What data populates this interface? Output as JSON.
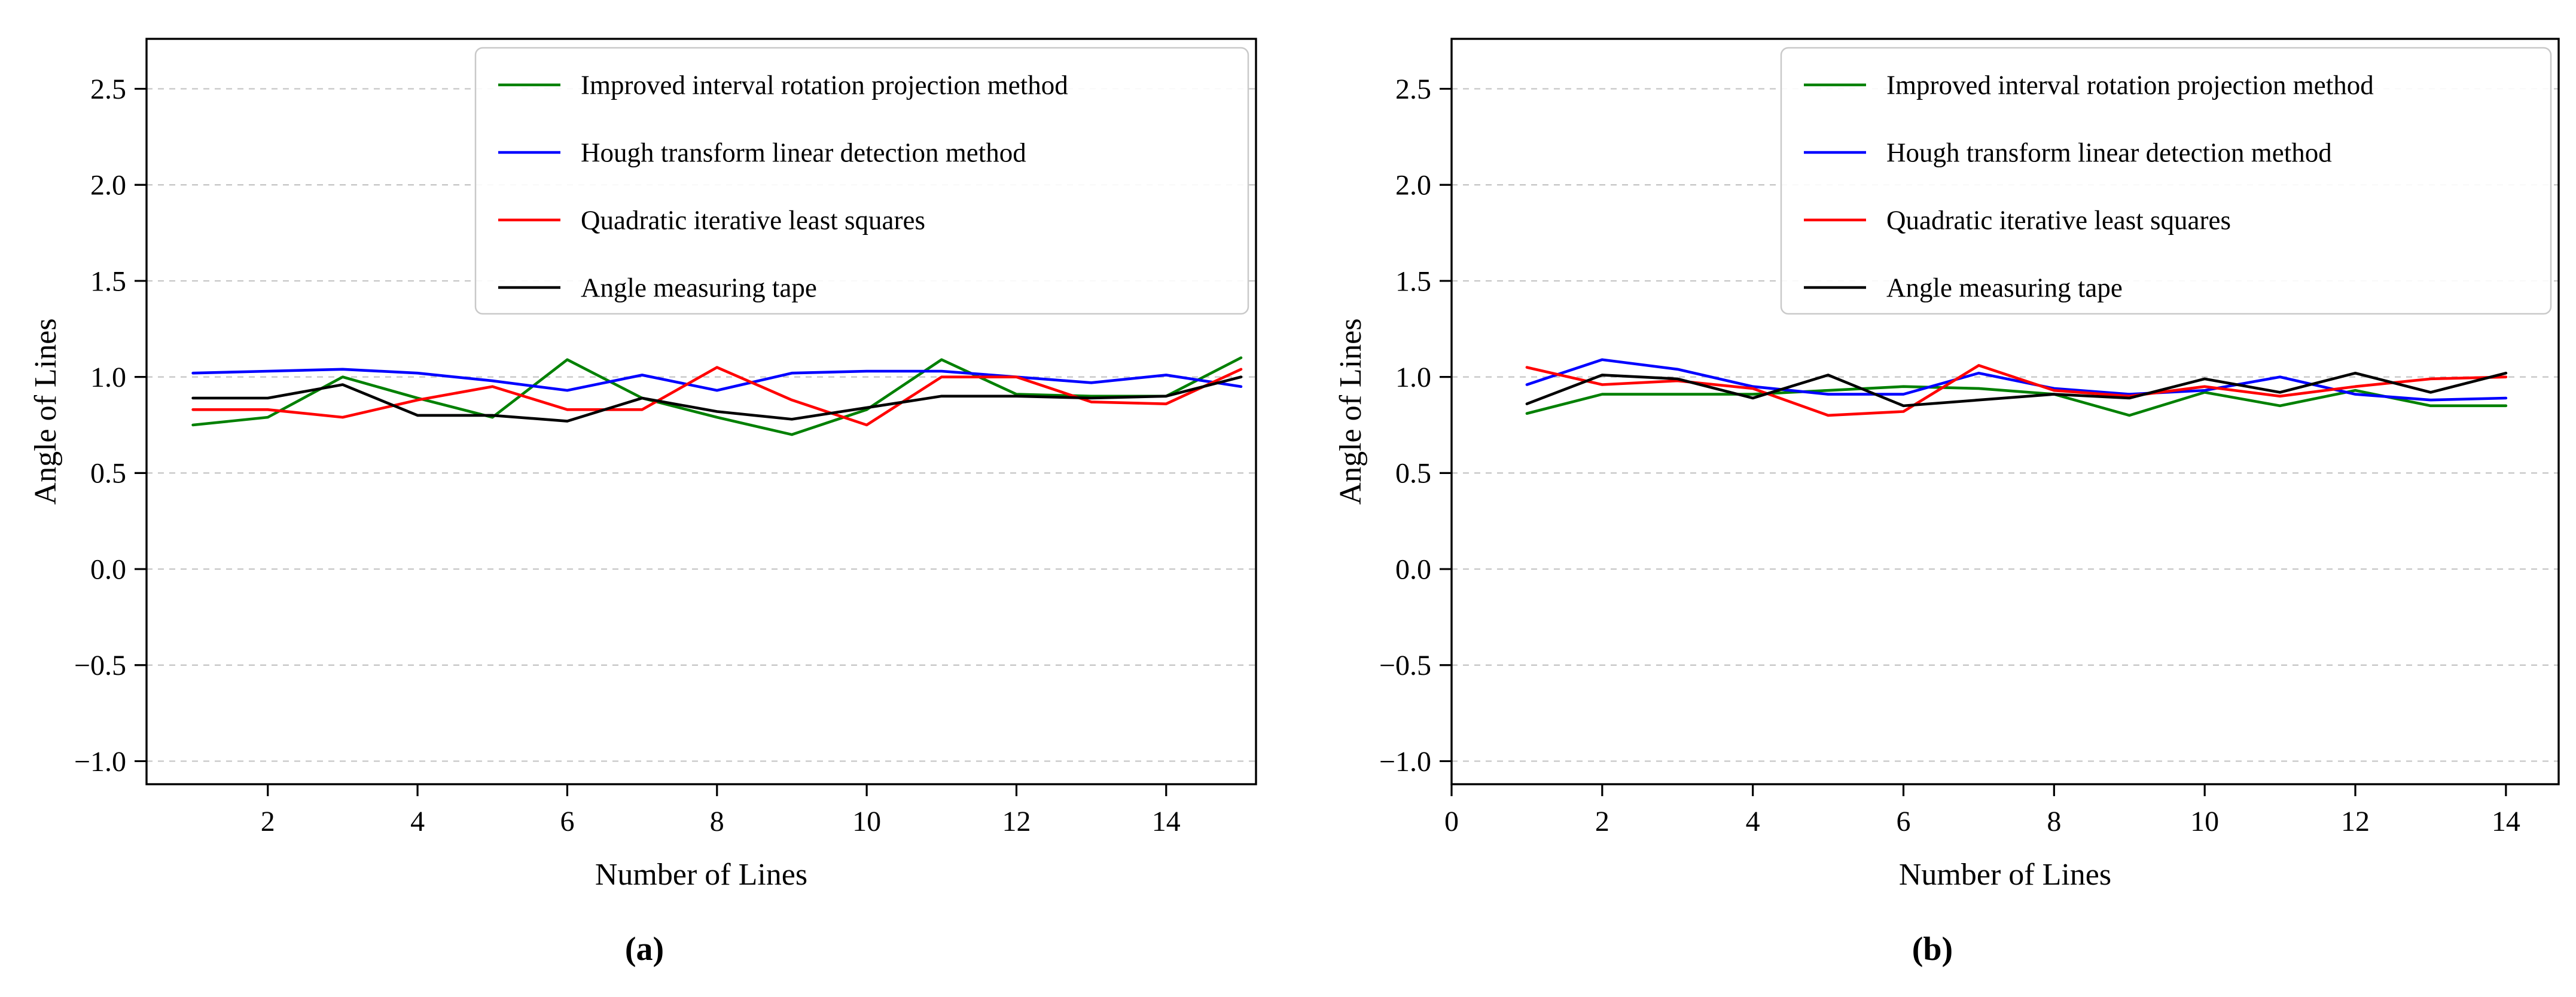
{
  "figure": {
    "background": "#ffffff",
    "caption_a": "(a)",
    "caption_b": "(b)"
  },
  "chart_data": [
    {
      "id": "a",
      "type": "line",
      "title": "",
      "xlabel": "Number of Lines",
      "ylabel": "Angle of Lines",
      "xlim": [
        0.38,
        15.2
      ],
      "ylim": [
        -1.12,
        2.76
      ],
      "xticks": [
        2,
        4,
        6,
        8,
        10,
        12,
        14
      ],
      "yticks": [
        2.5,
        2.0,
        1.5,
        1.0,
        0.5,
        0.0,
        -0.5,
        -1.0
      ],
      "grid": "horizontal-dashed",
      "grid_color": "#c4c4c4",
      "legend_position": "upper right",
      "x": [
        1,
        2,
        3,
        4,
        5,
        6,
        7,
        8,
        9,
        10,
        11,
        12,
        13,
        14,
        15
      ],
      "series": [
        {
          "name": "Improved interval rotation projection method",
          "color": "#008000",
          "values": [
            0.75,
            0.79,
            1.0,
            0.89,
            0.79,
            1.09,
            0.89,
            0.79,
            0.7,
            0.83,
            1.09,
            0.91,
            0.9,
            0.9,
            1.1
          ]
        },
        {
          "name": "Hough transform linear detection method",
          "color": "#0000ff",
          "values": [
            1.02,
            1.03,
            1.04,
            1.02,
            0.98,
            0.93,
            1.01,
            0.93,
            1.02,
            1.03,
            1.03,
            1.0,
            0.97,
            1.01,
            0.95
          ]
        },
        {
          "name": "Quadratic iterative least squares",
          "color": "#ff0000",
          "values": [
            0.83,
            0.83,
            0.79,
            0.88,
            0.95,
            0.83,
            0.83,
            1.05,
            0.88,
            0.75,
            1.0,
            1.0,
            0.87,
            0.86,
            1.04
          ]
        },
        {
          "name": "Angle measuring tape",
          "color": "#000000",
          "values": [
            0.89,
            0.89,
            0.96,
            0.8,
            0.8,
            0.77,
            0.89,
            0.82,
            0.78,
            0.84,
            0.9,
            0.9,
            0.89,
            0.9,
            1.0
          ]
        }
      ]
    },
    {
      "id": "b",
      "type": "line",
      "title": "",
      "xlabel": "Number of Lines",
      "ylabel": "Angle of Lines",
      "xlim": [
        0,
        14.7
      ],
      "ylim": [
        -1.12,
        2.76
      ],
      "xticks": [
        0,
        2,
        4,
        6,
        8,
        10,
        12,
        14
      ],
      "yticks": [
        2.5,
        2.0,
        1.5,
        1.0,
        0.5,
        0.0,
        -0.5,
        -1.0
      ],
      "grid": "horizontal-dashed",
      "grid_color": "#c4c4c4",
      "legend_position": "upper right",
      "x": [
        1,
        2,
        3,
        4,
        5,
        6,
        7,
        8,
        9,
        10,
        11,
        12,
        13,
        14
      ],
      "series": [
        {
          "name": "Improved interval rotation projection method",
          "color": "#008000",
          "values": [
            0.81,
            0.91,
            0.91,
            0.91,
            0.93,
            0.95,
            0.94,
            0.91,
            0.8,
            0.92,
            0.85,
            0.93,
            0.85,
            0.85
          ]
        },
        {
          "name": "Hough transform linear detection method",
          "color": "#0000ff",
          "values": [
            0.96,
            1.09,
            1.04,
            0.95,
            0.91,
            0.91,
            1.02,
            0.94,
            0.91,
            0.93,
            1.0,
            0.91,
            0.88,
            0.89
          ]
        },
        {
          "name": "Quadratic iterative least squares",
          "color": "#ff0000",
          "values": [
            1.05,
            0.96,
            0.98,
            0.94,
            0.8,
            0.82,
            1.06,
            0.93,
            0.9,
            0.95,
            0.9,
            0.95,
            0.99,
            1.0
          ]
        },
        {
          "name": "Angle measuring tape",
          "color": "#000000",
          "values": [
            0.86,
            1.01,
            0.99,
            0.89,
            1.01,
            0.85,
            0.88,
            0.91,
            0.89,
            0.99,
            0.92,
            1.02,
            0.92,
            1.02
          ]
        }
      ]
    }
  ]
}
